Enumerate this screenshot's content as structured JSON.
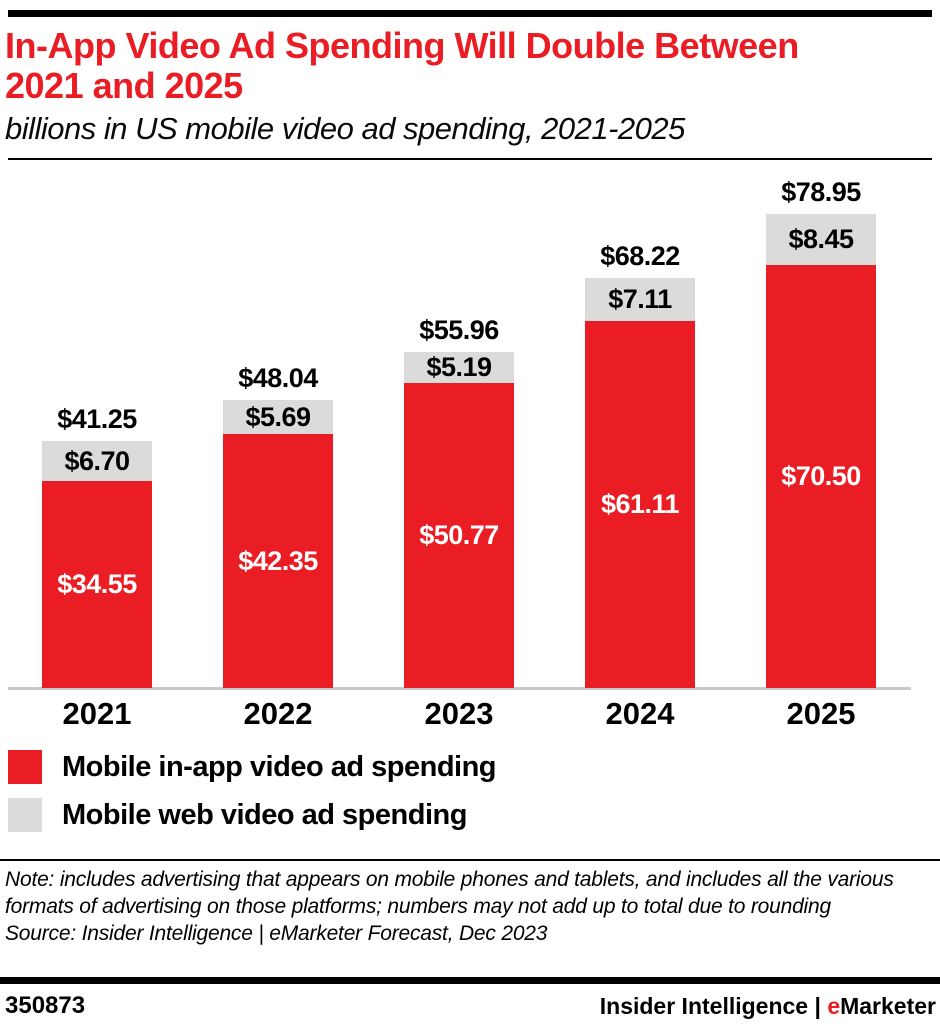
{
  "header": {
    "title_line1": "In-App Video Ad Spending Will Double Between",
    "title_line2": "2021 and 2025",
    "subtitle": "billions in US mobile video ad spending, 2021-2025"
  },
  "chart_data": {
    "type": "bar",
    "stacked": true,
    "title": "In-App Video Ad Spending Will Double Between 2021 and 2025",
    "subtitle": "billions in US mobile video ad spending, 2021-2025",
    "unit": "billions of US dollars",
    "categories": [
      "2021",
      "2022",
      "2023",
      "2024",
      "2025"
    ],
    "series": [
      {
        "name": "Mobile in-app video ad spending",
        "color": "#ea1c24",
        "values": [
          34.55,
          42.35,
          50.77,
          61.11,
          70.5
        ],
        "labels": [
          "$34.55",
          "$42.35",
          "$50.77",
          "$61.11",
          "$70.50"
        ]
      },
      {
        "name": "Mobile web video ad spending",
        "color": "#dbdbda",
        "values": [
          6.7,
          5.69,
          5.19,
          7.11,
          8.45
        ],
        "labels": [
          "$6.70",
          "$5.69",
          "$5.19",
          "$7.11",
          "$8.45"
        ]
      }
    ],
    "totals": [
      41.25,
      48.04,
      55.96,
      68.22,
      78.95
    ],
    "total_labels": [
      "$41.25",
      "$48.04",
      "$55.96",
      "$68.22",
      "$78.95"
    ],
    "ylim": [
      0,
      87
    ],
    "grid": false,
    "legend_position": "bottom-left"
  },
  "notes": {
    "note": "Note: includes advertising that appears on mobile phones and tablets, and includes all the various formats of advertising on those platforms; numbers may not add up to total due to rounding",
    "source": "Source: Insider Intelligence | eMarketer Forecast, Dec 2023"
  },
  "footer": {
    "chart_id": "350873",
    "brand_prefix": "Insider Intelligence | ",
    "brand_accent": "e",
    "brand_suffix": "Marketer"
  },
  "colors": {
    "accent_red": "#ea1c24",
    "segment_gray": "#dbdbda",
    "axis_gray": "#c9c9c9"
  }
}
